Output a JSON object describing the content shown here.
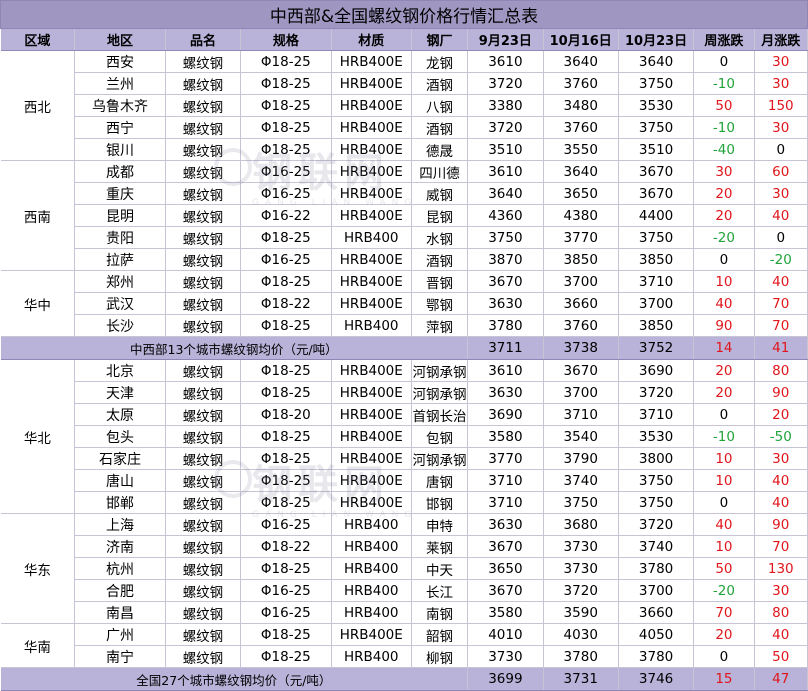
{
  "title": "中西部&全国螺纹钢价格行情汇总表",
  "headers": [
    "区域",
    "地区",
    "品名",
    "规格",
    "材质",
    "钢厂",
    "9月23日",
    "10月16日",
    "10月23日",
    "周涨跌",
    "月涨跌"
  ],
  "watermark": {
    "main": "钢联网",
    "sub": "GANG LIAN WANG"
  },
  "groups_a": [
    {
      "region": "西北",
      "rows": [
        {
          "city": "西安",
          "product": "螺纹钢",
          "spec": "Φ18-25",
          "grade": "HRB400E",
          "mill": "龙钢",
          "p1": "3610",
          "p2": "3640",
          "p3": "3640",
          "wk": "0",
          "wk_c": "black",
          "mo": "30",
          "mo_c": "red"
        },
        {
          "city": "兰州",
          "product": "螺纹钢",
          "spec": "Φ18-25",
          "grade": "HRB400E",
          "mill": "酒钢",
          "p1": "3720",
          "p2": "3760",
          "p3": "3750",
          "wk": "-10",
          "wk_c": "green",
          "mo": "30",
          "mo_c": "red"
        },
        {
          "city": "乌鲁木齐",
          "product": "螺纹钢",
          "spec": "Φ18-25",
          "grade": "HRB400E",
          "mill": "八钢",
          "p1": "3380",
          "p2": "3480",
          "p3": "3530",
          "wk": "50",
          "wk_c": "red",
          "mo": "150",
          "mo_c": "red"
        },
        {
          "city": "西宁",
          "product": "螺纹钢",
          "spec": "Φ18-25",
          "grade": "HRB400E",
          "mill": "酒钢",
          "p1": "3720",
          "p2": "3760",
          "p3": "3750",
          "wk": "-10",
          "wk_c": "green",
          "mo": "30",
          "mo_c": "red"
        },
        {
          "city": "银川",
          "product": "螺纹钢",
          "spec": "Φ18-25",
          "grade": "HRB400E",
          "mill": "德晟",
          "p1": "3510",
          "p2": "3550",
          "p3": "3510",
          "wk": "-40",
          "wk_c": "green",
          "mo": "0",
          "mo_c": "black"
        }
      ]
    },
    {
      "region": "西南",
      "rows": [
        {
          "city": "成都",
          "product": "螺纹钢",
          "spec": "Φ16-25",
          "grade": "HRB400E",
          "mill": "四川德",
          "p1": "3610",
          "p2": "3640",
          "p3": "3670",
          "wk": "30",
          "wk_c": "red",
          "mo": "60",
          "mo_c": "red"
        },
        {
          "city": "重庆",
          "product": "螺纹钢",
          "spec": "Φ16-25",
          "grade": "HRB400E",
          "mill": "威钢",
          "p1": "3640",
          "p2": "3650",
          "p3": "3670",
          "wk": "20",
          "wk_c": "red",
          "mo": "30",
          "mo_c": "red"
        },
        {
          "city": "昆明",
          "product": "螺纹钢",
          "spec": "Φ16-22",
          "grade": "HRB400E",
          "mill": "昆钢",
          "p1": "4360",
          "p2": "4380",
          "p3": "4400",
          "wk": "20",
          "wk_c": "red",
          "mo": "40",
          "mo_c": "red"
        },
        {
          "city": "贵阳",
          "product": "螺纹钢",
          "spec": "Φ18-25",
          "grade": "HRB400",
          "mill": "水钢",
          "p1": "3750",
          "p2": "3770",
          "p3": "3750",
          "wk": "-20",
          "wk_c": "green",
          "mo": "0",
          "mo_c": "black"
        },
        {
          "city": "拉萨",
          "product": "螺纹钢",
          "spec": "Φ16-25",
          "grade": "HRB400E",
          "mill": "酒钢",
          "p1": "3870",
          "p2": "3850",
          "p3": "3850",
          "wk": "0",
          "wk_c": "black",
          "mo": "-20",
          "mo_c": "green"
        }
      ]
    },
    {
      "region": "华中",
      "rows": [
        {
          "city": "郑州",
          "product": "螺纹钢",
          "spec": "Φ18-25",
          "grade": "HRB400E",
          "mill": "晋钢",
          "p1": "3670",
          "p2": "3700",
          "p3": "3710",
          "wk": "10",
          "wk_c": "red",
          "mo": "40",
          "mo_c": "red"
        },
        {
          "city": "武汉",
          "product": "螺纹钢",
          "spec": "Φ18-22",
          "grade": "HRB400E",
          "mill": "鄂钢",
          "p1": "3630",
          "p2": "3660",
          "p3": "3700",
          "wk": "40",
          "wk_c": "red",
          "mo": "70",
          "mo_c": "red"
        },
        {
          "city": "长沙",
          "product": "螺纹钢",
          "spec": "Φ18-25",
          "grade": "HRB400",
          "mill": "萍钢",
          "p1": "3780",
          "p2": "3760",
          "p3": "3850",
          "wk": "90",
          "wk_c": "red",
          "mo": "70",
          "mo_c": "red"
        }
      ]
    }
  ],
  "avg_a": {
    "label": "中西部13个城市螺纹钢均价（元/吨）",
    "p1": "3711",
    "p2": "3738",
    "p3": "3752",
    "wk": "14",
    "mo": "41"
  },
  "groups_b": [
    {
      "region": "华北",
      "rows": [
        {
          "city": "北京",
          "product": "螺纹钢",
          "spec": "Φ18-25",
          "grade": "HRB400E",
          "mill": "河钢承钢",
          "p1": "3610",
          "p2": "3670",
          "p3": "3690",
          "wk": "20",
          "wk_c": "red",
          "mo": "80",
          "mo_c": "red"
        },
        {
          "city": "天津",
          "product": "螺纹钢",
          "spec": "Φ18-25",
          "grade": "HRB400E",
          "mill": "河钢承钢",
          "p1": "3630",
          "p2": "3700",
          "p3": "3720",
          "wk": "20",
          "wk_c": "red",
          "mo": "90",
          "mo_c": "red"
        },
        {
          "city": "太原",
          "product": "螺纹钢",
          "spec": "Φ18-20",
          "grade": "HRB400E",
          "mill": "首钢长治",
          "p1": "3690",
          "p2": "3710",
          "p3": "3710",
          "wk": "0",
          "wk_c": "black",
          "mo": "20",
          "mo_c": "red"
        },
        {
          "city": "包头",
          "product": "螺纹钢",
          "spec": "Φ18-25",
          "grade": "HRB400E",
          "mill": "包钢",
          "p1": "3580",
          "p2": "3540",
          "p3": "3530",
          "wk": "-10",
          "wk_c": "green",
          "mo": "-50",
          "mo_c": "green"
        },
        {
          "city": "石家庄",
          "product": "螺纹钢",
          "spec": "Φ18-25",
          "grade": "HRB400E",
          "mill": "河钢承钢",
          "p1": "3770",
          "p2": "3790",
          "p3": "3800",
          "wk": "10",
          "wk_c": "red",
          "mo": "30",
          "mo_c": "red"
        },
        {
          "city": "唐山",
          "product": "螺纹钢",
          "spec": "Φ18-25",
          "grade": "HRB400E",
          "mill": "唐钢",
          "p1": "3710",
          "p2": "3740",
          "p3": "3750",
          "wk": "10",
          "wk_c": "red",
          "mo": "40",
          "mo_c": "red"
        },
        {
          "city": "邯郸",
          "product": "螺纹钢",
          "spec": "Φ18-25",
          "grade": "HRB400E",
          "mill": "邯钢",
          "p1": "3710",
          "p2": "3750",
          "p3": "3750",
          "wk": "0",
          "wk_c": "black",
          "mo": "40",
          "mo_c": "red"
        }
      ]
    },
    {
      "region": "华东",
      "rows": [
        {
          "city": "上海",
          "product": "螺纹钢",
          "spec": "Φ16-25",
          "grade": "HRB400",
          "mill": "申特",
          "p1": "3630",
          "p2": "3680",
          "p3": "3720",
          "wk": "40",
          "wk_c": "red",
          "mo": "90",
          "mo_c": "red"
        },
        {
          "city": "济南",
          "product": "螺纹钢",
          "spec": "Φ18-22",
          "grade": "HRB400",
          "mill": "莱钢",
          "p1": "3670",
          "p2": "3730",
          "p3": "3740",
          "wk": "10",
          "wk_c": "red",
          "mo": "70",
          "mo_c": "red"
        },
        {
          "city": "杭州",
          "product": "螺纹钢",
          "spec": "Φ18-25",
          "grade": "HRB400",
          "mill": "中天",
          "p1": "3650",
          "p2": "3730",
          "p3": "3780",
          "wk": "50",
          "wk_c": "red",
          "mo": "130",
          "mo_c": "red"
        },
        {
          "city": "合肥",
          "product": "螺纹钢",
          "spec": "Φ16-25",
          "grade": "HRB400",
          "mill": "长江",
          "p1": "3670",
          "p2": "3720",
          "p3": "3700",
          "wk": "-20",
          "wk_c": "green",
          "mo": "30",
          "mo_c": "red"
        },
        {
          "city": "南昌",
          "product": "螺纹钢",
          "spec": "Φ16-25",
          "grade": "HRB400",
          "mill": "南钢",
          "p1": "3580",
          "p2": "3590",
          "p3": "3660",
          "wk": "70",
          "wk_c": "red",
          "mo": "80",
          "mo_c": "red"
        }
      ]
    },
    {
      "region": "华南",
      "rows": [
        {
          "city": "广州",
          "product": "螺纹钢",
          "spec": "Φ18-25",
          "grade": "HRB400E",
          "mill": "韶钢",
          "p1": "4010",
          "p2": "4030",
          "p3": "4050",
          "wk": "20",
          "wk_c": "red",
          "mo": "40",
          "mo_c": "red"
        },
        {
          "city": "南宁",
          "product": "螺纹钢",
          "spec": "Φ18-25",
          "grade": "HRB400",
          "mill": "柳钢",
          "p1": "3730",
          "p2": "3780",
          "p3": "3780",
          "wk": "0",
          "wk_c": "black",
          "mo": "50",
          "mo_c": "red"
        }
      ]
    }
  ],
  "avg_b": {
    "label": "全国27个城市螺纹钢均价（元/吨）",
    "p1": "3699",
    "p2": "3731",
    "p3": "3746",
    "wk": "15",
    "mo": "47"
  }
}
